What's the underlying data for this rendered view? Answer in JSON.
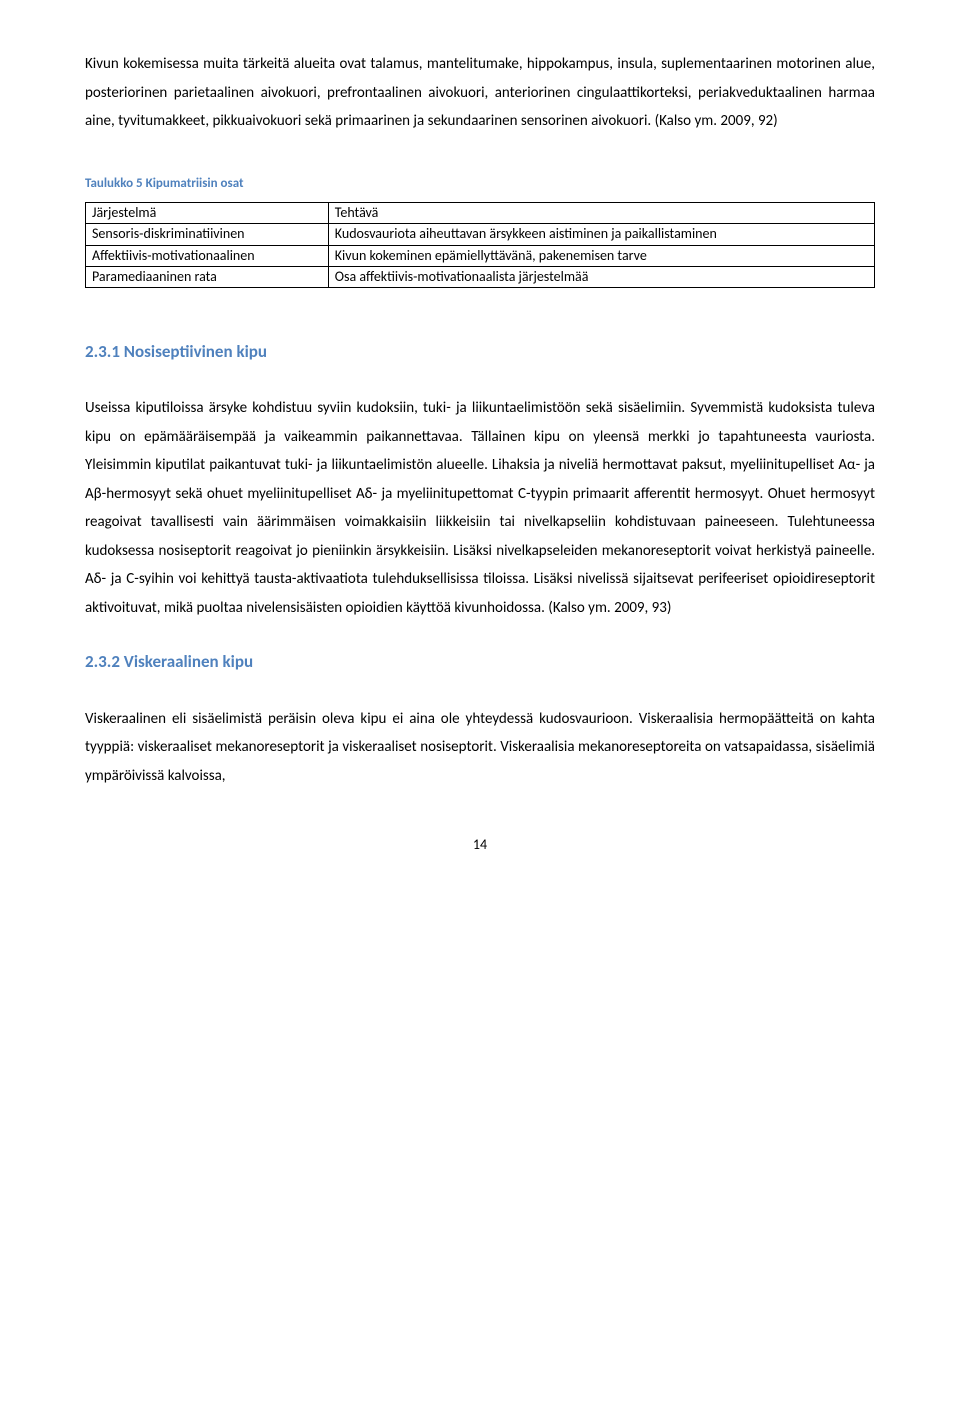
{
  "paragraphs": {
    "p1": "Kivun kokemisessa muita tärkeitä alueita ovat talamus, mantelitumake, hippokampus, insula, suplementaarinen motorinen alue, posteriorinen parietaalinen aivokuori, prefrontaalinen aivokuori, anteriorinen cingulaattikorteksi, periakveduktaalinen harmaa aine, tyvitumakkeet, pikkuaivokuori sekä primaarinen ja sekundaarinen sensorinen aivokuori. (Kalso ym. 2009, 92)",
    "p2": "Useissa kiputiloissa ärsyke kohdistuu syviin kudoksiin, tuki- ja liikuntaelimistöön sekä sisäelimiin. Syvemmistä kudoksista tuleva kipu on epämääräisempää ja vaikeammin paikannettavaa. Tällainen kipu on yleensä merkki jo tapahtuneesta vauriosta. Yleisimmin kiputilat paikantuvat tuki- ja liikuntaelimistön alueelle. Lihaksia ja niveliä hermottavat paksut, myeliinitupelliset Aα- ja Aβ-hermosyyt sekä ohuet myeliinitupelliset Aδ- ja myeliinitupettomat C-tyypin primaarit afferentit hermosyyt. Ohuet hermosyyt reagoivat tavallisesti vain äärimmäisen voimakkaisiin liikkeisiin tai nivelkapseliin kohdistuvaan paineeseen. Tulehtuneessa kudoksessa nosiseptorit reagoivat jo pieniinkin ärsykkeisiin. Lisäksi nivelkapseleiden mekanoreseptorit voivat herkistyä paineelle. Aδ- ja C-syihin voi kehittyä tausta-aktivaatiota tulehduksellisissa tiloissa. Lisäksi nivelissä sijaitsevat perifeeriset opioidireseptorit aktivoituvat, mikä puoltaa nivelensisäisten opioidien käyttöä kivunhoidossa. (Kalso ym. 2009, 93)",
    "p3": "Viskeraalinen eli sisäelimistä peräisin oleva kipu ei aina ole yhteydessä kudosvaurioon. Viskeraalisia hermopäätteitä on kahta tyyppiä: viskeraaliset mekanoreseptorit ja viskeraaliset nosiseptorit. Viskeraalisia mekanoreseptoreita on vatsapaidassa, sisäelimiä ympäröivissä kalvoissa,"
  },
  "table": {
    "caption": "Taulukko 5 Kipumatriisin osat",
    "headers": {
      "col1": "Järjestelmä",
      "col2": "Tehtävä"
    },
    "rows": [
      {
        "c1": "Sensoris-diskriminatiivinen",
        "c2": "Kudosvauriota aiheuttavan ärsykkeen aistiminen ja paikallistaminen"
      },
      {
        "c1": "Affektiivis-motivationaalinen",
        "c2": "Kivun kokeminen epämiellyttävänä, pakenemisen tarve"
      },
      {
        "c1": "Paramediaaninen rata",
        "c2": "Osa affektiivis-motivationaalista järjestelmää"
      }
    ]
  },
  "headings": {
    "h231": "2.3.1 Nosiseptiivinen kipu",
    "h232": "2.3.2 Viskeraalinen kipu"
  },
  "pageNumber": "14"
}
